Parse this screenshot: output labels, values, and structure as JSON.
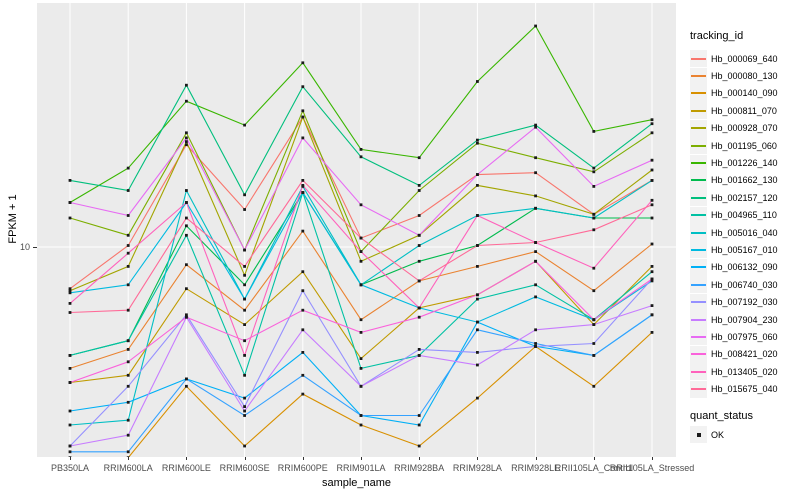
{
  "legend": {
    "tracking_title": "tracking_id",
    "quant_title": "quant_status",
    "quant_items": [
      {
        "label": "OK",
        "shape": "black-square"
      }
    ]
  },
  "chart_data": {
    "type": "line",
    "title": "",
    "xlabel": "sample_name",
    "ylabel": "FPKM + 1",
    "y_scale": "log10",
    "y_ticks": [
      "10"
    ],
    "ylim": [
      2.4,
      48
    ],
    "grid": "on",
    "legend_position": "right",
    "panel_color": "#EBEBEB",
    "grid_color": "#FFFFFF",
    "marker": "black-square",
    "categories": [
      "PB350LA",
      "RRIM600LA",
      "RRIM600LE",
      "RRIM600SE",
      "RRIM600PE",
      "RRIM901LA",
      "RRIM928BA",
      "RRIM928LA",
      "RRIM928LE",
      "RRII105LA_Control",
      "RRII105LA_Stressed"
    ],
    "series": [
      {
        "tracking_id": "Hb_000069_640",
        "color": "#F8766D",
        "values": [
          7.6,
          10.1,
          19.6,
          12.8,
          23.5,
          10.6,
          12.3,
          16.1,
          16.3,
          12.4,
          15.5
        ]
      },
      {
        "tracking_id": "Hb_000080_130",
        "color": "#EA8331",
        "values": [
          4.5,
          5.1,
          8.9,
          6.6,
          11.1,
          6.2,
          8.0,
          8.8,
          9.7,
          7.5,
          10.2
        ]
      },
      {
        "tracking_id": "Hb_000140_090",
        "color": "#D89000",
        "values": [
          2.5,
          2.5,
          4.0,
          2.7,
          3.8,
          3.1,
          2.7,
          3.7,
          5.2,
          4.0,
          5.7
        ]
      },
      {
        "tracking_id": "Hb_000811_070",
        "color": "#C09B00",
        "values": [
          4.1,
          4.3,
          7.6,
          6.0,
          8.5,
          4.8,
          6.7,
          7.3,
          9.1,
          6.0,
          8.8
        ]
      },
      {
        "tracking_id": "Hb_000928_070",
        "color": "#A3A500",
        "values": [
          7.5,
          8.8,
          20.0,
          8.3,
          23.5,
          9.1,
          10.8,
          15.0,
          14.0,
          12.4,
          16.6
        ]
      },
      {
        "tracking_id": "Hb_001195_060",
        "color": "#7CAE00",
        "values": [
          12.1,
          10.8,
          21.2,
          9.8,
          24.5,
          9.7,
          14.5,
          19.8,
          18.0,
          16.4,
          21.2
        ]
      },
      {
        "tracking_id": "Hb_001226_140",
        "color": "#39B600",
        "values": [
          13.4,
          16.8,
          26.1,
          22.3,
          33.6,
          19.0,
          18.0,
          29.7,
          42.8,
          21.4,
          23.1
        ]
      },
      {
        "tracking_id": "Hb_001662_130",
        "color": "#00BB4E",
        "values": [
          4.9,
          5.4,
          11.5,
          7.8,
          14.3,
          7.8,
          9.1,
          10.1,
          12.9,
          12.1,
          12.1
        ]
      },
      {
        "tracking_id": "Hb_002157_120",
        "color": "#00BF7D",
        "values": [
          15.5,
          14.5,
          29.0,
          14.1,
          28.7,
          18.1,
          15.0,
          20.2,
          22.3,
          16.8,
          22.5
        ]
      },
      {
        "tracking_id": "Hb_004965_110",
        "color": "#00C1A3",
        "values": [
          4.9,
          5.4,
          10.8,
          4.3,
          14.3,
          4.5,
          4.9,
          7.1,
          7.8,
          6.2,
          8.5
        ]
      },
      {
        "tracking_id": "Hb_005016_040",
        "color": "#00BFC4",
        "values": [
          3.1,
          3.2,
          14.5,
          7.1,
          14.9,
          7.8,
          10.1,
          12.3,
          12.9,
          12.1,
          15.5
        ]
      },
      {
        "tracking_id": "Hb_005167_010",
        "color": "#00BAE0",
        "values": [
          7.4,
          7.8,
          13.4,
          7.1,
          14.3,
          7.8,
          6.7,
          6.1,
          7.2,
          6.2,
          8.0
        ]
      },
      {
        "tracking_id": "Hb_006132_090",
        "color": "#00B0F6",
        "values": [
          3.4,
          3.6,
          4.2,
          3.7,
          5.0,
          3.3,
          3.1,
          6.1,
          5.2,
          4.9,
          6.4
        ]
      },
      {
        "tracking_id": "Hb_006740_030",
        "color": "#35A2FF",
        "values": [
          2.6,
          2.6,
          4.2,
          3.3,
          4.3,
          3.3,
          3.3,
          5.8,
          5.3,
          4.9,
          6.4
        ]
      },
      {
        "tracking_id": "Hb_007192_030",
        "color": "#9590FF",
        "values": [
          2.7,
          4.0,
          6.4,
          3.5,
          7.5,
          4.0,
          5.1,
          5.0,
          5.2,
          5.3,
          8.1
        ]
      },
      {
        "tracking_id": "Hb_007904_230",
        "color": "#C77CFF",
        "values": [
          2.7,
          2.9,
          6.3,
          3.4,
          5.8,
          4.0,
          4.9,
          4.6,
          5.8,
          6.0,
          6.8
        ]
      },
      {
        "tracking_id": "Hb_007975_060",
        "color": "#E76BF3",
        "values": [
          13.4,
          12.3,
          20.5,
          9.8,
          20.5,
          13.2,
          10.8,
          16.1,
          22.0,
          14.9,
          17.7
        ]
      },
      {
        "tracking_id": "Hb_008421_020",
        "color": "#FA62DB",
        "values": [
          4.1,
          4.7,
          6.3,
          5.4,
          6.6,
          5.7,
          6.3,
          7.3,
          9.1,
          6.2,
          8.1
        ]
      },
      {
        "tracking_id": "Hb_013405_020",
        "color": "#FF62BC",
        "values": [
          6.9,
          9.6,
          13.4,
          4.9,
          15.0,
          9.7,
          6.7,
          12.3,
          10.3,
          8.7,
          13.6
        ]
      },
      {
        "tracking_id": "Hb_015675_040",
        "color": "#FF6A98",
        "values": [
          6.5,
          6.6,
          12.1,
          8.8,
          15.5,
          10.6,
          8.0,
          10.1,
          10.3,
          11.2,
          13.2
        ]
      }
    ]
  }
}
